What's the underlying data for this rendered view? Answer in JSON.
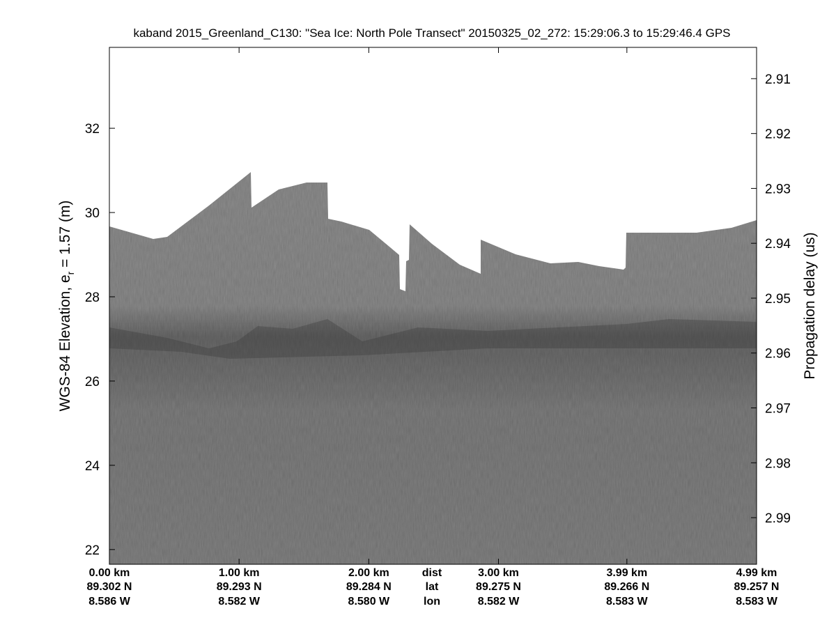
{
  "chart_data": {
    "type": "echogram",
    "title": "kaband 2015_Greenland_C130: \"Sea Ice: North Pole Transect\"  20150325_02_272: 15:29:06.3 to 15:29:46.4 GPS",
    "ylabel": {
      "main": "WGS-84 Elevation, e",
      "subscript": "r",
      "rest": " = 1.57 (m)"
    },
    "y2label": "Propagation delay (us)",
    "xlim": [
      0,
      4.99
    ],
    "xticks": [
      {
        "value": 0,
        "label": "0.00 km",
        "lat": "89.302 N",
        "lon": "8.586 W"
      },
      {
        "value": 1,
        "label": "1.00 km",
        "lat": "89.293 N",
        "lon": "8.582 W"
      },
      {
        "value": 2,
        "label": "2.00 km",
        "lat": "89.284 N",
        "lon": "8.580 W"
      },
      {
        "value": 3,
        "label": "3.00 km",
        "lat": "89.275 N",
        "lon": "8.582 W"
      },
      {
        "value": 3.99,
        "label": "3.99 km",
        "lat": "89.266 N",
        "lon": "8.583 W"
      },
      {
        "value": 4.99,
        "label": "4.99 km",
        "lat": "89.257 N",
        "lon": "8.583 W"
      }
    ],
    "x_row_labels": [
      "dist",
      "lat",
      "lon"
    ],
    "ylim": [
      21.65,
      33.92
    ],
    "yticks": [
      22,
      24,
      26,
      28,
      30,
      32
    ],
    "y2lim": [
      2.9043,
      2.9985
    ],
    "y2_reversed": true,
    "y2ticks": [
      2.91,
      2.92,
      2.93,
      2.94,
      2.95,
      2.96,
      2.97,
      2.98,
      2.99
    ]
  }
}
